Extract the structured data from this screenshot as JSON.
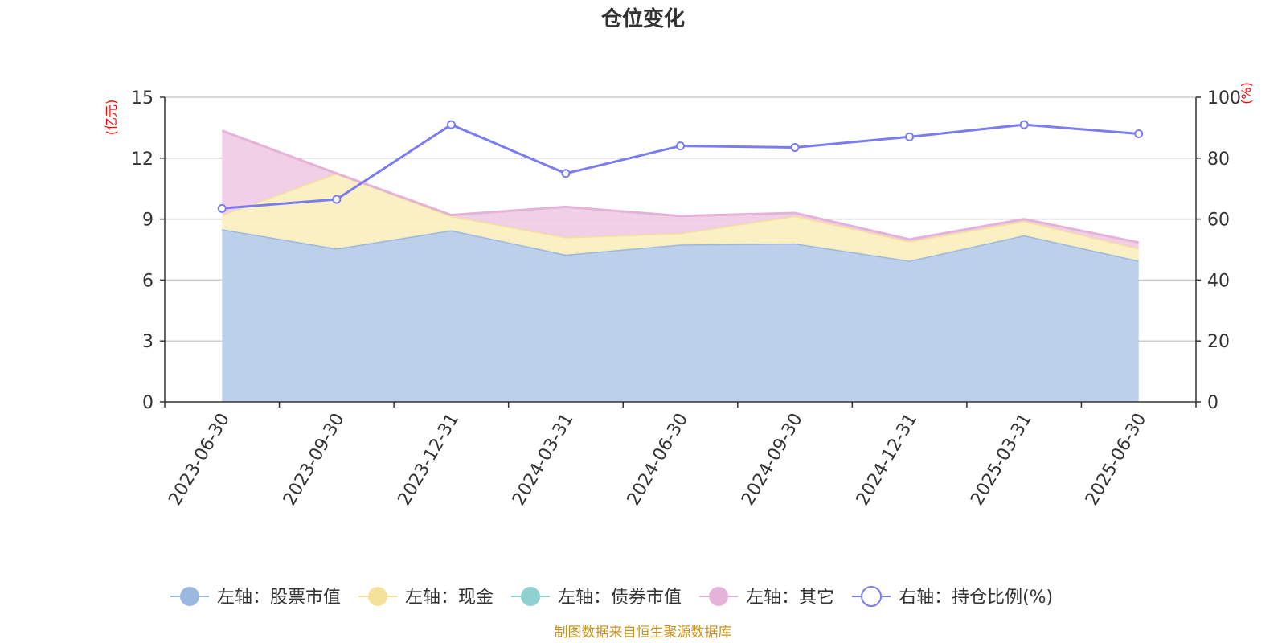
{
  "chart_data": {
    "type": "area",
    "title": "仓位变化",
    "left_unit": "(亿元)",
    "right_unit": "(%)",
    "categories": [
      "2023-06-30",
      "2023-09-30",
      "2023-12-31",
      "2024-03-31",
      "2024-06-30",
      "2024-09-30",
      "2024-12-31",
      "2025-03-31",
      "2025-06-30"
    ],
    "left_axis": {
      "min": 0,
      "max": 15,
      "ticks": [
        0,
        3,
        6,
        9,
        12,
        15
      ]
    },
    "right_axis": {
      "min": 0,
      "max": 100,
      "ticks": [
        0,
        20,
        40,
        60,
        80,
        100
      ]
    },
    "stacked": true,
    "series": [
      {
        "name": "左轴：股票市值",
        "axis": "left",
        "color": "#9bb8e0",
        "fill": "#b8cdea",
        "values": [
          8.5,
          7.55,
          8.45,
          7.25,
          7.75,
          7.8,
          6.95,
          8.2,
          6.95
        ]
      },
      {
        "name": "左轴：现金",
        "axis": "left",
        "color": "#f5e29a",
        "fill": "#faefc0",
        "values": [
          0.7,
          3.7,
          0.7,
          0.85,
          0.55,
          1.35,
          0.95,
          0.7,
          0.6
        ]
      },
      {
        "name": "左轴：债券市值",
        "axis": "left",
        "color": "#8fd0d0",
        "fill": "#b5e1e1",
        "values": [
          0,
          0,
          0,
          0,
          0,
          0,
          0,
          0,
          0
        ]
      },
      {
        "name": "左轴：其它",
        "axis": "left",
        "color": "#e5b3d8",
        "fill": "#f0cce6",
        "values": [
          4.15,
          0,
          0.05,
          1.5,
          0.85,
          0.15,
          0.1,
          0.1,
          0.3
        ]
      },
      {
        "name": "右轴：持仓比例(%)",
        "axis": "right",
        "type": "line",
        "color": "#7b7cf0",
        "values": [
          63.5,
          66.5,
          91,
          75,
          84,
          83.5,
          87,
          91,
          88
        ]
      }
    ],
    "grid": true,
    "legend_position": "bottom"
  },
  "source_note": "制图数据来自恒生聚源数据库"
}
